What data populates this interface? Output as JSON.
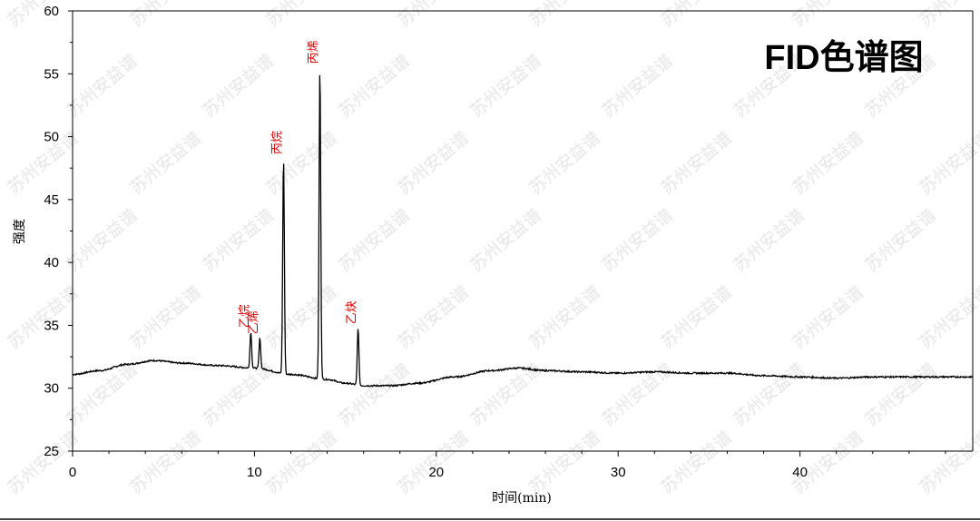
{
  "chart_data": {
    "type": "line",
    "title": "FID色谱图",
    "xlabel": "时间(min)",
    "ylabel": "强度",
    "xlim": [
      0,
      49.5
    ],
    "ylim": [
      25,
      60
    ],
    "x_ticks": [
      0,
      10,
      20,
      30,
      40
    ],
    "y_ticks": [
      25,
      30,
      35,
      40,
      45,
      50,
      55,
      60
    ],
    "grid": false,
    "colors": {
      "trace": "#000000",
      "peak_label": "#e00000",
      "watermark": "#c8c8c8"
    },
    "watermark_text": "苏州安益谱",
    "baseline": [
      [
        0,
        31.1
      ],
      [
        1.5,
        31.4
      ],
      [
        3,
        31.9
      ],
      [
        4.5,
        32.2
      ],
      [
        6,
        32.0
      ],
      [
        8,
        31.8
      ],
      [
        10,
        31.6
      ],
      [
        12,
        31.1
      ],
      [
        14,
        30.7
      ],
      [
        15,
        30.4
      ],
      [
        16,
        30.2
      ],
      [
        17.5,
        30.2
      ],
      [
        19,
        30.4
      ],
      [
        21,
        30.9
      ],
      [
        23,
        31.4
      ],
      [
        24.5,
        31.6
      ],
      [
        26,
        31.4
      ],
      [
        28,
        31.3
      ],
      [
        30,
        31.2
      ],
      [
        32,
        31.3
      ],
      [
        34,
        31.2
      ],
      [
        36,
        31.2
      ],
      [
        38,
        31.0
      ],
      [
        40,
        30.9
      ],
      [
        42,
        30.8
      ],
      [
        44,
        30.9
      ],
      [
        46,
        30.9
      ],
      [
        48,
        30.9
      ],
      [
        49.5,
        30.9
      ]
    ],
    "peaks": [
      {
        "label": "乙烷",
        "x": 9.8,
        "height": 34.5
      },
      {
        "label": "乙烯",
        "x": 10.3,
        "height": 34.0
      },
      {
        "label": "丙烷",
        "x": 11.6,
        "height": 48.3
      },
      {
        "label": "丙烯",
        "x": 13.6,
        "height": 55.5
      },
      {
        "label": "乙炔",
        "x": 15.7,
        "height": 34.8
      }
    ]
  }
}
